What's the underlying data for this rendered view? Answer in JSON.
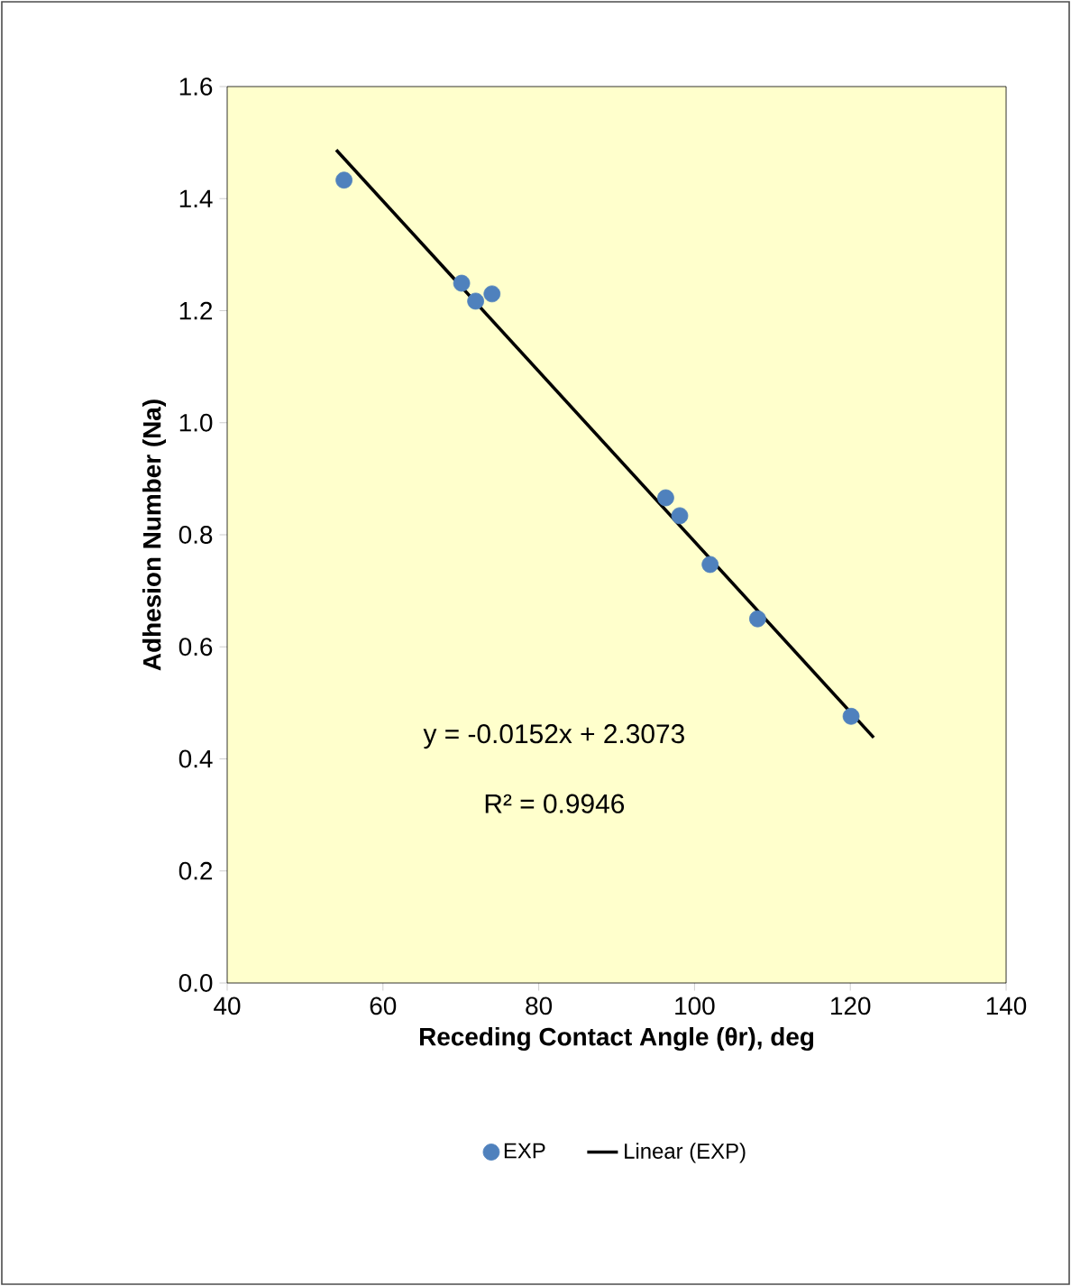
{
  "chart_data": {
    "type": "scatter",
    "xlabel": "Receding Contact Angle (θr), deg",
    "ylabel": "Adhesion Number (Na)",
    "xlim": [
      40,
      140
    ],
    "xticks": [
      40,
      60,
      80,
      100,
      120,
      140
    ],
    "ylim": [
      0,
      1.6
    ],
    "yticks": [
      {
        "value": 0,
        "label": "0.0"
      },
      {
        "value": 0.2,
        "label": "0.2"
      },
      {
        "value": 0.4,
        "label": "0.4"
      },
      {
        "value": 0.6,
        "label": "0.6"
      },
      {
        "value": 0.8,
        "label": "0.8"
      },
      {
        "value": 1.0,
        "label": "1.0"
      },
      {
        "value": 1.2,
        "label": "1.2"
      },
      {
        "value": 1.4,
        "label": "1.4"
      },
      {
        "value": 1.6,
        "label": "1.6"
      }
    ],
    "series": [
      {
        "name": "EXP",
        "marker": "circle",
        "color": "#4f81bd",
        "x": [
          55.0,
          70.1,
          71.9,
          74.0,
          96.3,
          98.1,
          102.0,
          108.1,
          120.1
        ],
        "values": [
          1.433,
          1.249,
          1.217,
          1.23,
          0.866,
          0.834,
          0.747,
          0.65,
          0.476
        ]
      },
      {
        "name": "Linear (EXP)",
        "type": "line",
        "marker": "none",
        "line_style": "solid",
        "color": "#000000",
        "x": [
          54,
          123
        ],
        "values": [
          1.487,
          0.438
        ]
      }
    ],
    "annotations": [
      "y = -0.0152x + 2.3073",
      "R² = 0.9946"
    ],
    "legend": "bottom",
    "grid": false
  }
}
